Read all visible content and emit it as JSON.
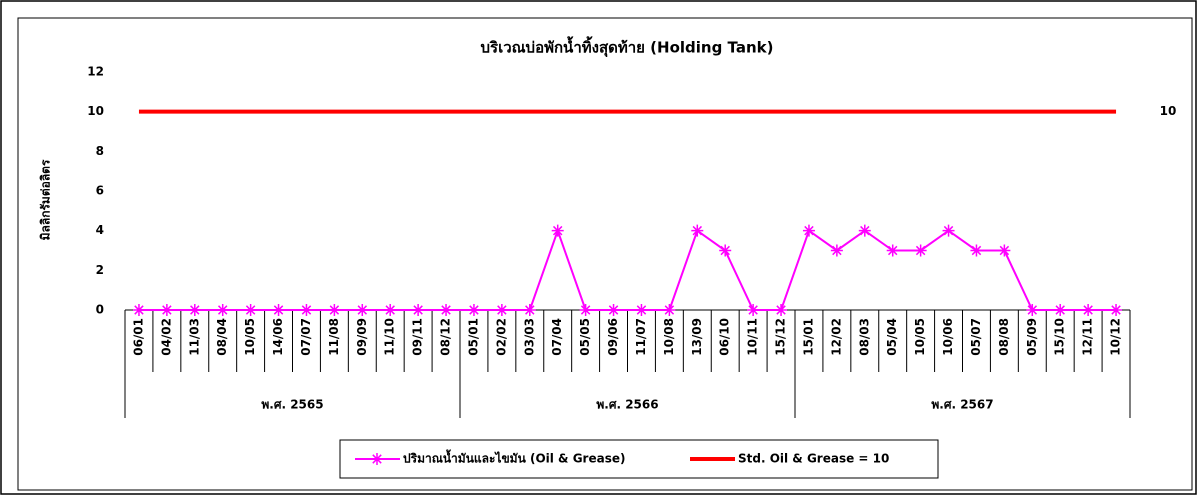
{
  "chart_data": {
    "type": "line",
    "title": "บริเวณบ่อพักน้ำทิ้งสุดท้าย (Holding Tank)",
    "y_label": "มิลลิกรัมต่อลิตร",
    "categories": [
      "06/01",
      "04/02",
      "11/03",
      "08/04",
      "10/05",
      "14/06",
      "07/07",
      "11/08",
      "09/09",
      "11/10",
      "09/11",
      "08/12",
      "05/01",
      "02/02",
      "03/03",
      "07/04",
      "05/05",
      "09/06",
      "11/07",
      "10/08",
      "13/09",
      "06/10",
      "10/11",
      "15/12",
      "15/01",
      "12/02",
      "08/03",
      "05/04",
      "10/05",
      "10/06",
      "05/07",
      "08/08",
      "05/09",
      "15/10",
      "12/11",
      "10/12"
    ],
    "groups": [
      "พ.ศ. 2565",
      "พ.ศ. 2566",
      "พ.ศ. 2567"
    ],
    "series": [
      {
        "name": "ปริมาณน้ำมันและไขมัน (Oil & Grease)",
        "color": "#ff00ff",
        "marker": "asterisk",
        "values": [
          0,
          0,
          0,
          0,
          0,
          0,
          0,
          0,
          0,
          0,
          0,
          0,
          0,
          0,
          0,
          4,
          0,
          0,
          0,
          0,
          4,
          3,
          0,
          0,
          4,
          3,
          4,
          3,
          3,
          4,
          3,
          3,
          0,
          0,
          0,
          0
        ]
      },
      {
        "name": "Std.  Oil & Grease = 10",
        "color": "#ff0000",
        "marker": "none",
        "data_labels": "last",
        "values": [
          10,
          10,
          10,
          10,
          10,
          10,
          10,
          10,
          10,
          10,
          10,
          10,
          10,
          10,
          10,
          10,
          10,
          10,
          10,
          10,
          10,
          10,
          10,
          10,
          10,
          10,
          10,
          10,
          10,
          10,
          10,
          10,
          10,
          10,
          10,
          10
        ]
      }
    ],
    "ylim": [
      0,
      12
    ],
    "yticks": [
      0,
      2,
      4,
      6,
      8,
      10,
      12
    ],
    "grid": false,
    "legend": "bottom"
  }
}
